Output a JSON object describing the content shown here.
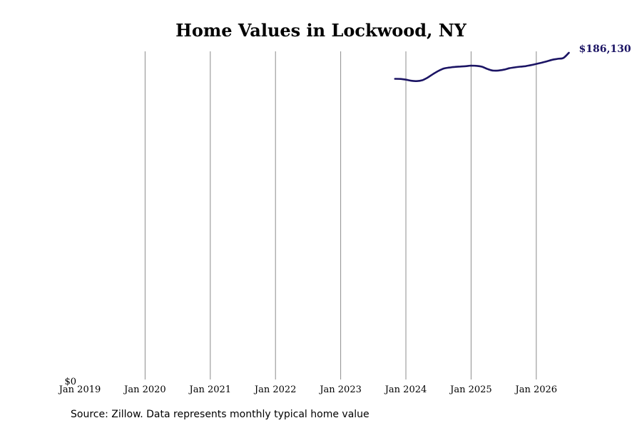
{
  "chart_data": {
    "type": "line",
    "title": "Home Values in Lockwood, NY",
    "xlabel": "",
    "ylabel": "",
    "x_range": [
      "2019-01",
      "2026-07"
    ],
    "x_ticks": [
      "Jan 2019",
      "Jan 2020",
      "Jan 2021",
      "Jan 2022",
      "Jan 2023",
      "Jan 2024",
      "Jan 2025",
      "Jan 2026"
    ],
    "y_tick_label": "$0",
    "ylim": [
      0,
      186130
    ],
    "grid": "vertical",
    "line_color": "#1b1464",
    "end_label": "$186,130",
    "series": [
      {
        "x": [
          "2023-11",
          "2023-12",
          "2024-01",
          "2024-02",
          "2024-03",
          "2024-04",
          "2024-05",
          "2024-06",
          "2024-07",
          "2024-08",
          "2024-09",
          "2024-10",
          "2024-11",
          "2024-12",
          "2025-01",
          "2025-02",
          "2025-03",
          "2025-04",
          "2025-05",
          "2025-06",
          "2025-07",
          "2025-08",
          "2025-09",
          "2025-10",
          "2025-11",
          "2025-12",
          "2026-01",
          "2026-02",
          "2026-03",
          "2026-04",
          "2026-05",
          "2026-06",
          "2026-07"
        ],
        "values": [
          171300,
          171200,
          170800,
          170200,
          170000,
          170500,
          172000,
          174000,
          175800,
          177200,
          177700,
          178100,
          178300,
          178500,
          178800,
          178700,
          178200,
          176900,
          176000,
          176000,
          176500,
          177300,
          177800,
          178200,
          178500,
          179100,
          179800,
          180500,
          181300,
          182200,
          182700,
          183200,
          186130
        ]
      }
    ]
  },
  "footer": {
    "source": "Source: Zillow. Data represents monthly typical home value"
  }
}
